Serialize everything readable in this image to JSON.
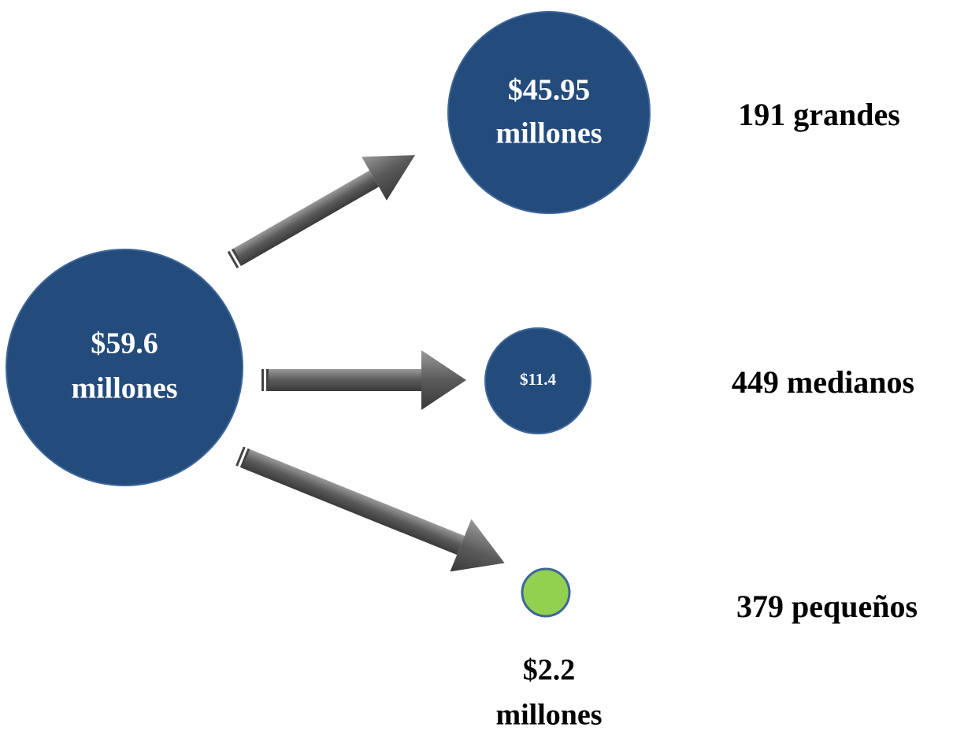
{
  "source": {
    "label_lines": [
      "$59.6",
      "millones"
    ]
  },
  "targets": [
    {
      "label_lines": [
        "$45.95",
        "millones"
      ],
      "group": "191 grandes"
    },
    {
      "label_lines": [
        "$11.4"
      ],
      "group": "449 medianos"
    },
    {
      "label_lines": [
        "$2.2",
        "millones"
      ],
      "group": "379 pequeños"
    }
  ]
}
